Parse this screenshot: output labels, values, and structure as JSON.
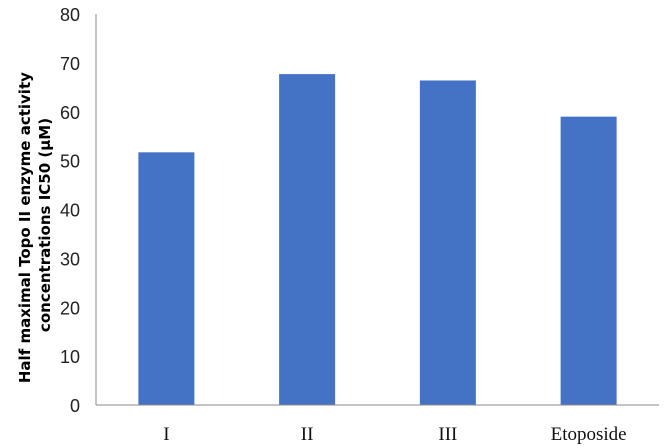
{
  "chart_data": {
    "type": "bar",
    "title": "",
    "xlabel": "",
    "ylabel_lines": [
      "Half maximal  Topo II enzyme activity",
      "concentrations IC50 (µM)"
    ],
    "categories": [
      "I",
      "II",
      "III",
      "Etoposide"
    ],
    "values": [
      51.7,
      67.7,
      66.4,
      59.0
    ],
    "ylim": [
      0,
      80
    ],
    "yticks": [
      0,
      10,
      20,
      30,
      40,
      50,
      60,
      70,
      80
    ],
    "grid": false,
    "legend": "none",
    "bar_color": "#4472C4"
  }
}
